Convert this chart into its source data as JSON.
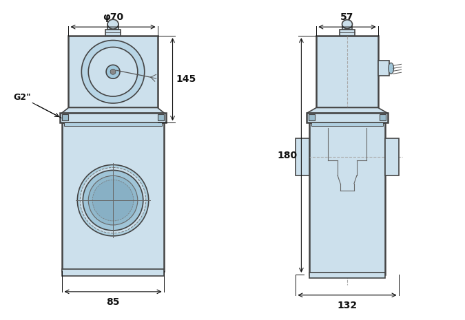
{
  "bg_color": "#ffffff",
  "body_fill": "#cce0ec",
  "body_stroke": "#444444",
  "dim_color": "#111111",
  "figsize": [
    6.75,
    4.65
  ],
  "dpi": 100,
  "dim_phi70": "φ70",
  "dim_85": "85",
  "dim_145": "145",
  "dim_57": "57",
  "dim_132": "132",
  "dim_180": "180",
  "dim_G2": "G2\""
}
